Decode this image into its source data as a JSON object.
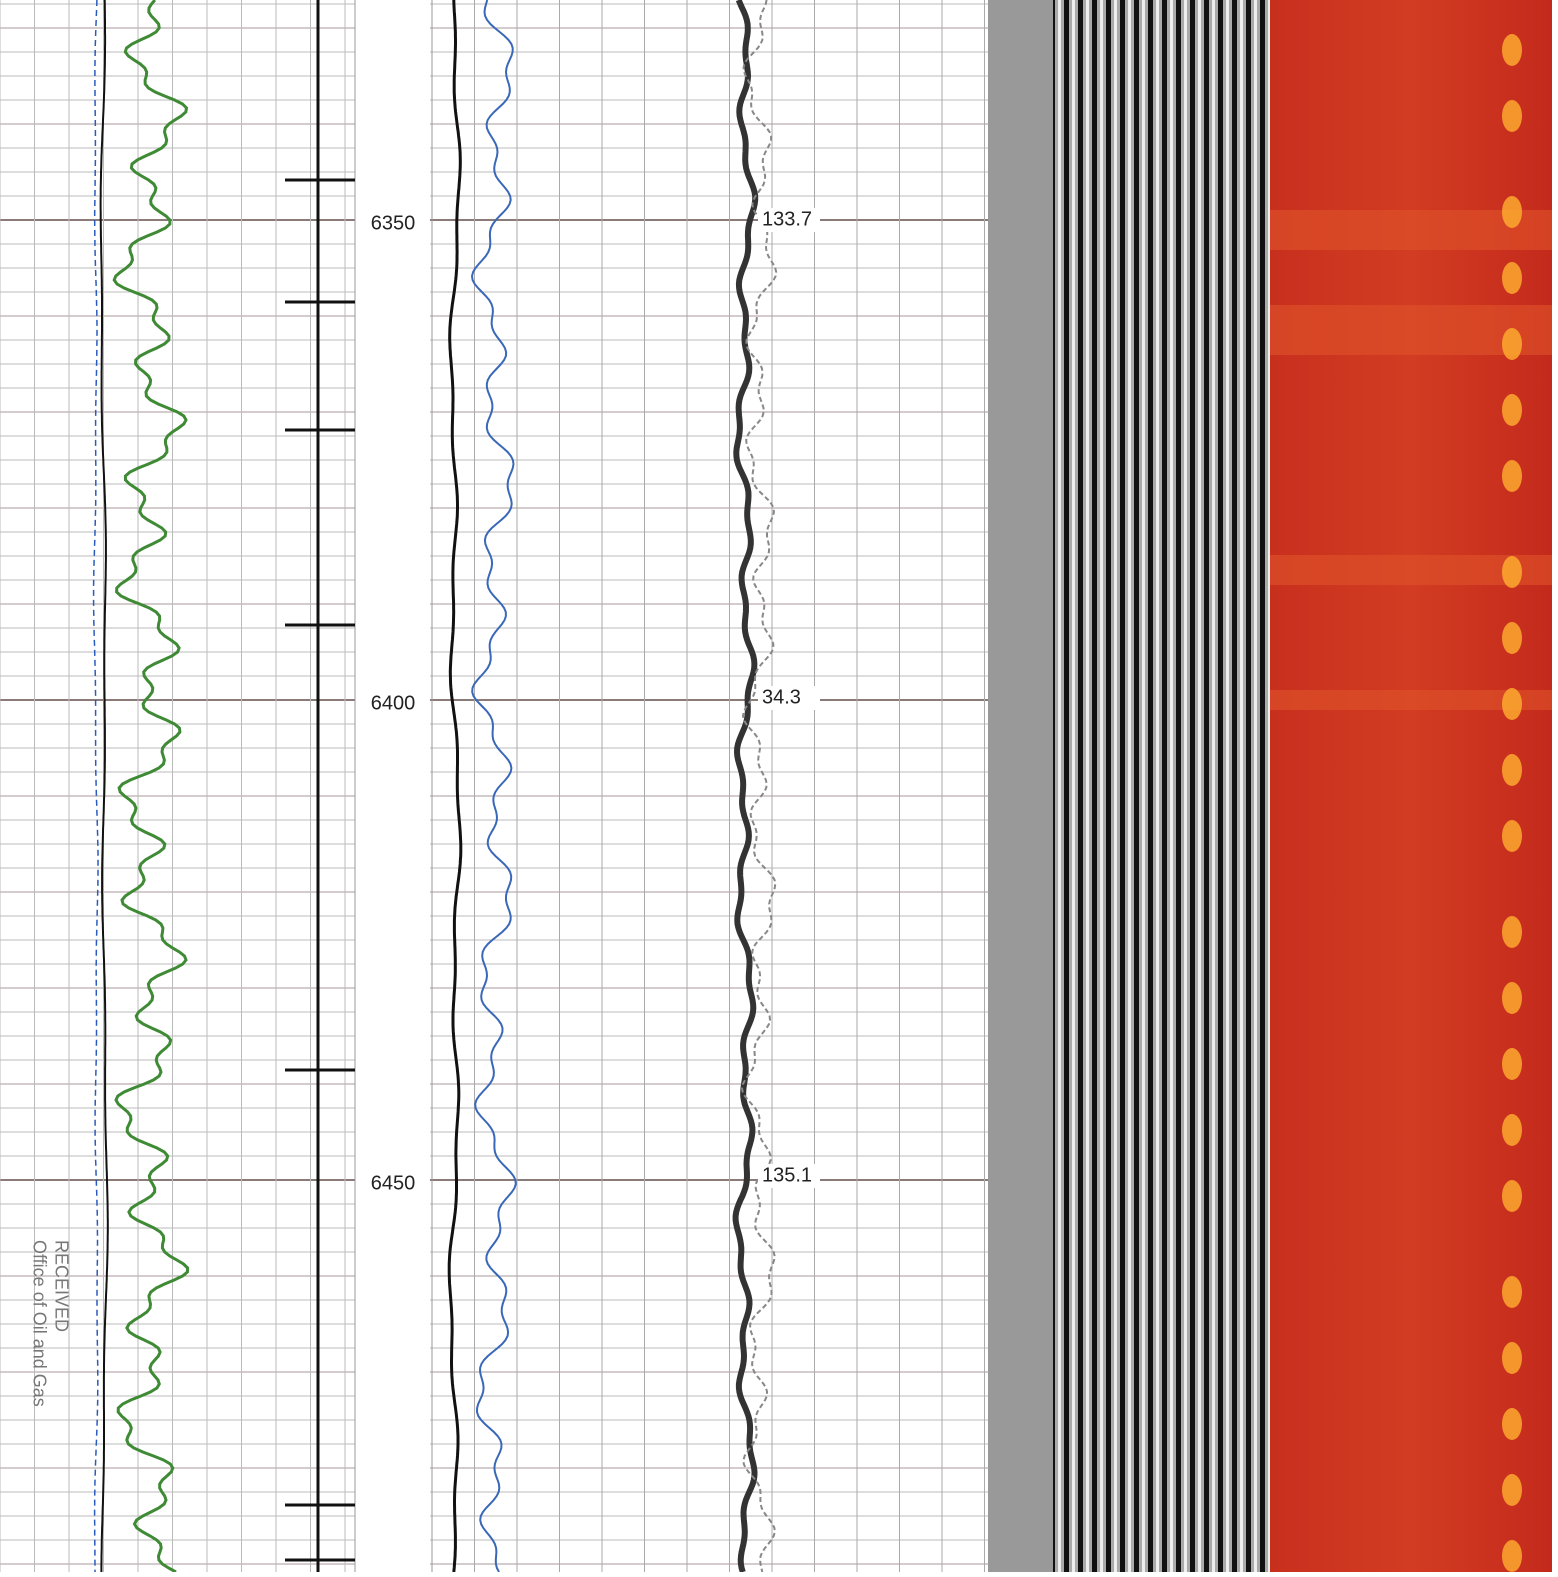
{
  "depth_labels": [
    "6350",
    "6400",
    "6450"
  ],
  "annotations": [
    "133.7",
    "34.3",
    "135.1"
  ],
  "stamp": {
    "line1": "RECEIVED",
    "line2": "Office of Oil and Gas"
  }
}
